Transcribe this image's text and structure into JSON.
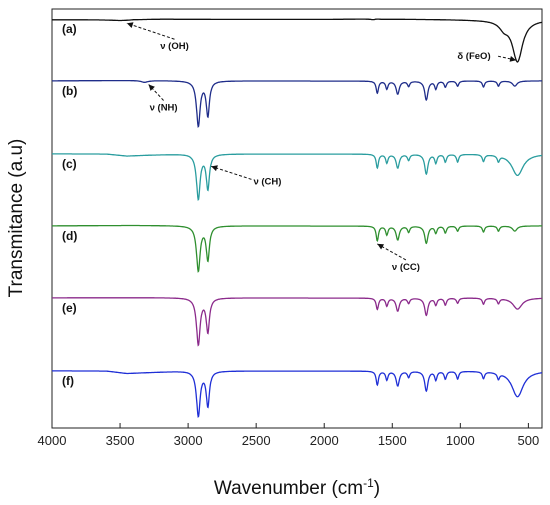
{
  "chart_data": {
    "type": "line",
    "xlabel": "Wavenumber (cm",
    "xlabel_sup": "-1",
    "xlabel_end": ")",
    "ylabel": "Transmitance (a.u)",
    "xlim": [
      4000,
      400
    ],
    "x_reversed": true,
    "x_ticks": [
      "4000",
      "3500",
      "3000",
      "2500",
      "2000",
      "1500",
      "1000",
      "500"
    ],
    "x_tick_values": [
      4000,
      3500,
      3000,
      2500,
      2000,
      1500,
      1000,
      500
    ],
    "series": [
      {
        "name": "(a)",
        "color": "#111111",
        "offset": 0,
        "base": [
          [
            4000,
            0.2
          ],
          [
            3500,
            0.18
          ],
          [
            3400,
            0.05
          ],
          [
            3300,
            0.08
          ],
          [
            3000,
            0.14
          ],
          [
            2500,
            0.16
          ],
          [
            2000,
            0.16
          ],
          [
            1650,
            0.1
          ],
          [
            1620,
            0.02
          ],
          [
            1580,
            0.12
          ],
          [
            1200,
            0.16
          ],
          [
            900,
            0.2
          ],
          [
            700,
            0.2
          ]
        ],
        "bands": [
          [
            3420,
            0.15,
            140
          ],
          [
            1630,
            0.12,
            25
          ],
          [
            580,
            4.8,
            45
          ],
          [
            680,
            0.8,
            40
          ]
        ]
      },
      {
        "name": "(b)",
        "color": "#1f2d8a",
        "offset": 1,
        "base": [
          [
            4000,
            0.1
          ],
          [
            3400,
            0.05
          ],
          [
            3000,
            0.08
          ],
          [
            2000,
            0.12
          ],
          [
            1000,
            0.1
          ],
          [
            400,
            0.1
          ]
        ],
        "bands": [
          [
            3320,
            0.2,
            30
          ],
          [
            2925,
            5.2,
            16
          ],
          [
            2855,
            4.0,
            14
          ],
          [
            1610,
            1.4,
            10
          ],
          [
            1540,
            0.9,
            10
          ],
          [
            1460,
            1.5,
            14
          ],
          [
            1380,
            0.6,
            10
          ],
          [
            1250,
            2.2,
            14
          ],
          [
            1180,
            0.9,
            10
          ],
          [
            1110,
            0.7,
            10
          ],
          [
            1020,
            0.6,
            10
          ],
          [
            830,
            0.7,
            10
          ],
          [
            720,
            0.6,
            10
          ],
          [
            600,
            0.6,
            20
          ]
        ]
      },
      {
        "name": "(c)",
        "color": "#2a9d9f",
        "offset": 2,
        "base": [
          [
            4000,
            0.1
          ],
          [
            3600,
            0.12
          ],
          [
            3450,
            0.35
          ],
          [
            3300,
            0.25
          ],
          [
            3000,
            0.1
          ],
          [
            2000,
            0.12
          ],
          [
            1000,
            0.1
          ],
          [
            400,
            0.1
          ]
        ],
        "bands": [
          [
            2925,
            5.2,
            16
          ],
          [
            2855,
            4.0,
            14
          ],
          [
            1610,
            1.6,
            10
          ],
          [
            1540,
            1.0,
            10
          ],
          [
            1460,
            1.6,
            14
          ],
          [
            1380,
            0.7,
            10
          ],
          [
            1250,
            2.3,
            14
          ],
          [
            1180,
            1.0,
            10
          ],
          [
            1110,
            0.9,
            10
          ],
          [
            1020,
            0.9,
            10
          ],
          [
            830,
            0.8,
            10
          ],
          [
            720,
            0.7,
            10
          ],
          [
            580,
            2.5,
            50
          ]
        ]
      },
      {
        "name": "(d)",
        "color": "#2f8f2f",
        "offset": 3,
        "base": [
          [
            4000,
            0.1
          ],
          [
            3400,
            0.05
          ],
          [
            3000,
            0.08
          ],
          [
            2000,
            0.12
          ],
          [
            1000,
            0.1
          ],
          [
            400,
            0.1
          ]
        ],
        "bands": [
          [
            2925,
            5.2,
            16
          ],
          [
            2855,
            3.9,
            14
          ],
          [
            1610,
            1.7,
            10
          ],
          [
            1540,
            1.0,
            10
          ],
          [
            1460,
            1.6,
            14
          ],
          [
            1380,
            0.7,
            10
          ],
          [
            1250,
            2.0,
            14
          ],
          [
            1180,
            0.8,
            10
          ],
          [
            1110,
            0.8,
            10
          ],
          [
            1020,
            0.6,
            10
          ],
          [
            830,
            0.7,
            10
          ],
          [
            720,
            0.6,
            10
          ],
          [
            600,
            0.6,
            20
          ]
        ]
      },
      {
        "name": "(e)",
        "color": "#8b2a8b",
        "offset": 4,
        "base": [
          [
            4000,
            0.1
          ],
          [
            3400,
            0.08
          ],
          [
            3000,
            0.08
          ],
          [
            2000,
            0.12
          ],
          [
            1000,
            0.1
          ],
          [
            400,
            0.1
          ]
        ],
        "bands": [
          [
            2925,
            5.4,
            16
          ],
          [
            2855,
            3.9,
            14
          ],
          [
            1610,
            1.3,
            10
          ],
          [
            1540,
            0.9,
            10
          ],
          [
            1460,
            1.5,
            14
          ],
          [
            1380,
            0.6,
            10
          ],
          [
            1250,
            2.0,
            14
          ],
          [
            1180,
            0.8,
            10
          ],
          [
            1110,
            0.8,
            10
          ],
          [
            1020,
            0.6,
            10
          ],
          [
            830,
            0.7,
            10
          ],
          [
            720,
            0.6,
            10
          ],
          [
            580,
            1.3,
            40
          ]
        ]
      },
      {
        "name": "(f)",
        "color": "#1f2fd6",
        "offset": 5,
        "base": [
          [
            4000,
            0.1
          ],
          [
            3600,
            0.12
          ],
          [
            3450,
            0.4
          ],
          [
            3300,
            0.3
          ],
          [
            3000,
            0.1
          ],
          [
            2000,
            0.12
          ],
          [
            1000,
            0.1
          ],
          [
            400,
            0.1
          ]
        ],
        "bands": [
          [
            2925,
            5.2,
            16
          ],
          [
            2855,
            4.0,
            14
          ],
          [
            1610,
            1.6,
            10
          ],
          [
            1540,
            1.0,
            10
          ],
          [
            1460,
            1.7,
            14
          ],
          [
            1380,
            0.7,
            10
          ],
          [
            1250,
            2.3,
            14
          ],
          [
            1180,
            1.0,
            10
          ],
          [
            1110,
            0.9,
            10
          ],
          [
            1020,
            0.9,
            10
          ],
          [
            830,
            0.8,
            10
          ],
          [
            720,
            0.7,
            10
          ],
          [
            580,
            3.0,
            50
          ]
        ]
      }
    ],
    "annotations": [
      {
        "text": "ν (OH)",
        "series": 0,
        "x_target": 3450,
        "x_label": 3100,
        "position": "below"
      },
      {
        "text": "δ (FeO)",
        "series": 0,
        "x_target": 590,
        "x_label": 870,
        "position": "left"
      },
      {
        "text": "ν (NH)",
        "series": 1,
        "x_target": 3290,
        "x_label": 3180,
        "position": "below"
      },
      {
        "text": "ν (CH)",
        "series": 2,
        "x_target": 2830,
        "x_label": 2520,
        "position": "right"
      },
      {
        "text": "ν (CC)",
        "series": 3,
        "x_target": 1610,
        "x_label": 1400,
        "position": "below"
      }
    ],
    "grid": false,
    "legend": "none"
  }
}
